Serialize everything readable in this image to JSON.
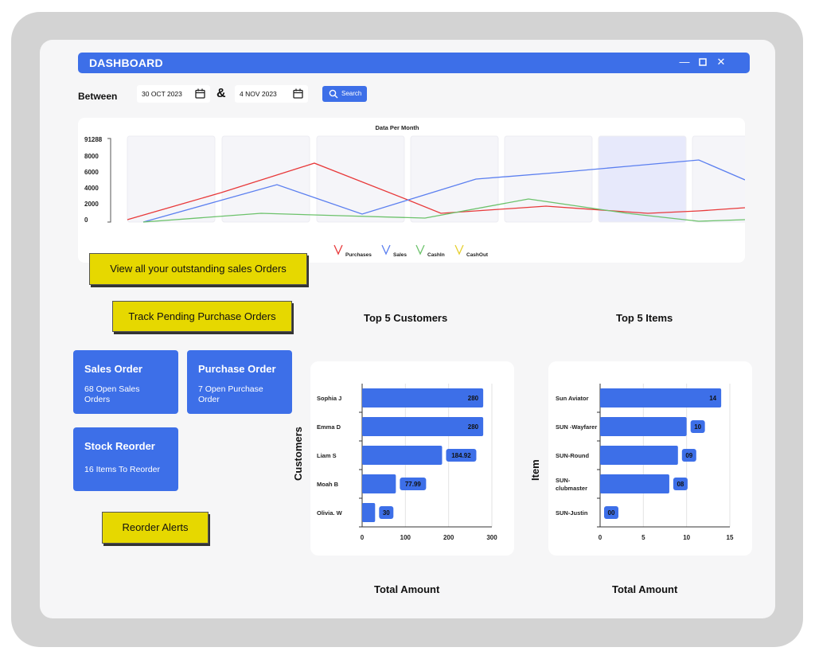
{
  "window": {
    "title": "DASHBOARD"
  },
  "filter": {
    "between_label": "Between",
    "from_date": "30 OCT 2023",
    "and_symbol": "&",
    "to_date": "4 NOV 2023",
    "search_label": "Search"
  },
  "quick_links": {
    "outstanding_sales": "View all your outstanding sales Orders",
    "pending_purchase": "Track Pending Purchase Orders",
    "reorder_alerts": "Reorder Alerts"
  },
  "tiles": [
    {
      "title": "Sales Order",
      "subtitle": "68 Open Sales Orders"
    },
    {
      "title": "Purchase Order",
      "subtitle": "7 Open Purchase Order"
    },
    {
      "title": "Stock Reorder",
      "subtitle": "16 Items To Reorder"
    }
  ],
  "colors": {
    "accent": "#3d6fe8",
    "purchases": "#e8393a",
    "sales": "#5b7ff0",
    "cashin": "#6cc26b",
    "cashout": "#e6cf2e",
    "highlight": "#e6d800"
  },
  "chart_data": [
    {
      "type": "line",
      "title": "Data Per Month",
      "y_ticks": [
        "91288",
        "8000",
        "6000",
        "4000",
        "2000",
        "0"
      ],
      "series": [
        {
          "name": "Purchases",
          "values": [
            0,
            3500,
            7100,
            2500,
            800,
            1500,
            900,
            1300,
            1400
          ]
        },
        {
          "name": "Sales",
          "values": [
            -300,
            2000,
            4300,
            600,
            2200,
            5100,
            6400,
            7400,
            4900
          ]
        },
        {
          "name": "CashIn",
          "values": [
            -300,
            200,
            700,
            600,
            200,
            2500,
            900,
            -200,
            100
          ]
        },
        {
          "name": "CashOut",
          "values": []
        }
      ],
      "legend_position": "bottom"
    },
    {
      "type": "bar",
      "orientation": "horizontal",
      "title": "Top 5 Customers",
      "ylabel": "Customers",
      "xlabel": "Total Amount",
      "categories": [
        "Sophia J",
        "Emma D",
        "Liam S",
        "Moah B",
        "Olivia. W"
      ],
      "values": [
        280,
        280,
        184.92,
        77.99,
        30
      ],
      "value_labels": [
        "280",
        "280",
        "184.92",
        "77.99",
        "30"
      ],
      "x_ticks": [
        "0",
        "100",
        "200",
        "300"
      ],
      "xlim": [
        0,
        300
      ]
    },
    {
      "type": "bar",
      "orientation": "horizontal",
      "title": "Top 5 Items",
      "ylabel": "Item",
      "xlabel": "Total Amount",
      "categories": [
        "Sun Aviator",
        "SUN -Wayfarer",
        "SUN-Round",
        "SUN-clubmaster",
        "SUN-Justin"
      ],
      "values": [
        14,
        10,
        9,
        8,
        0
      ],
      "value_labels": [
        "14",
        "10",
        "09",
        "08",
        "00"
      ],
      "x_ticks": [
        "0",
        "5",
        "10",
        "15"
      ],
      "xlim": [
        0,
        15
      ]
    }
  ]
}
